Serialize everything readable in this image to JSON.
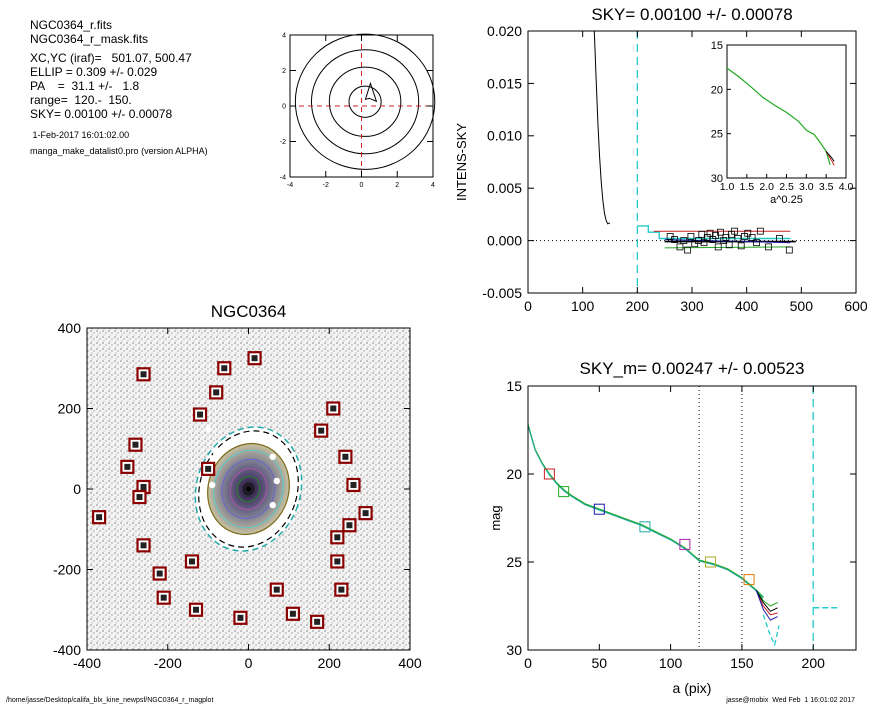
{
  "info": {
    "file1": "NGC0364_r.fits",
    "file2": "NGC0364_r_mask.fits",
    "xcyc": "XC,YC (iraf)=   501.07, 500.47",
    "ellip": "ELLIP = 0.309 +/- 0.029",
    "pa": "PA    =  31.1 +/-   1.8",
    "range": "range=  120.-  150.",
    "sky": "SKY= 0.00100 +/- 0.00078",
    "date": " 1-Feb-2017 16:01:02.00",
    "program": "manga_make_datalist0.pro (version ALPHA)"
  },
  "footer": {
    "path": "/home/jasse/Desktop/califa_blx_kine_newpsf/NGC0364_r_magplot",
    "user": "jasse@mobix  Wed Feb  1 16:01:02 2017"
  },
  "chart_data": [
    {
      "id": "contour-plot",
      "type": "contour",
      "title": "",
      "xlim": [
        -4,
        4
      ],
      "ylim": [
        -4,
        4
      ],
      "xticks": [
        "-4",
        "-2",
        "0",
        "2",
        "4"
      ],
      "yticks": [
        "-4",
        "-2",
        "0",
        "2",
        "4"
      ],
      "contour_radii": [
        0.9,
        2.0,
        3.0,
        3.9
      ],
      "center": [
        0.5,
        0.6
      ],
      "colors": {
        "crosshair": "#cc2222",
        "contour": "#000000"
      }
    },
    {
      "id": "sky-plot",
      "type": "line",
      "title": "SKY= 0.00100 +/- 0.00078",
      "xlabel": "",
      "ylabel": "INTENS-SKY",
      "xlim": [
        0,
        600
      ],
      "ylim": [
        -0.005,
        0.02
      ],
      "xticks": [
        "0",
        "100",
        "200",
        "300",
        "400",
        "500",
        "600"
      ],
      "yticks": [
        "-0.005",
        "0.000",
        "0.005",
        "0.010",
        "0.015",
        "0.020"
      ],
      "vline_x": 200,
      "profile": {
        "x": [
          120,
          122,
          125,
          128,
          131,
          134,
          137,
          140,
          143,
          146,
          150
        ],
        "y": [
          0.0215,
          0.019,
          0.015,
          0.011,
          0.008,
          0.0055,
          0.0038,
          0.0026,
          0.0019,
          0.0016,
          0.0017
        ]
      },
      "cyan_step": {
        "x": [
          200,
          220,
          220,
          240,
          240,
          480
        ],
        "y": [
          0.0014,
          0.0014,
          0.0008,
          0.0008,
          0.0002,
          0.0002
        ]
      },
      "lines": [
        {
          "color": "#cc2222",
          "x": [
            230,
            480
          ],
          "y": [
            0.0009,
            0.0009
          ]
        },
        {
          "color": "#000000",
          "x": [
            250,
            490
          ],
          "y": [
            -0.0001,
            -0.0001
          ]
        },
        {
          "color": "#1a1aaa",
          "x": [
            250,
            480
          ],
          "y": [
            0.0001,
            -0.0002
          ]
        },
        {
          "color": "#22aa22",
          "x": [
            250,
            480
          ],
          "y": [
            -0.0007,
            -0.0006
          ]
        }
      ],
      "squares": {
        "x": [
          260,
          268,
          278,
          285,
          292,
          298,
          305,
          312,
          318,
          322,
          328,
          333,
          338,
          343,
          348,
          352,
          358,
          362,
          368,
          372,
          378,
          384,
          390,
          396,
          402,
          410,
          418,
          425,
          440,
          460,
          478
        ],
        "y": [
          0.0004,
          0.0001,
          -0.0006,
          0.0,
          -0.0009,
          0.0004,
          -0.0003,
          0.0,
          0.0006,
          -0.0002,
          0.0003,
          0.0007,
          0.0001,
          0.0005,
          -0.0006,
          0.0008,
          0.0,
          0.0003,
          -0.0004,
          0.0006,
          0.0009,
          0.0002,
          -0.0005,
          0.0004,
          0.0007,
          0.0003,
          -0.0002,
          0.0009,
          -0.0006,
          0.0002,
          -0.0009
        ]
      },
      "inset": {
        "xlabel": "a^0.25",
        "xlim": [
          1.0,
          4.0
        ],
        "ylim": [
          15,
          30
        ],
        "xticks": [
          "1.0",
          "1.5",
          "2.0",
          "2.5",
          "3.0",
          "3.5",
          "4.0"
        ],
        "yticks": [
          "15",
          "20",
          "25",
          "30"
        ],
        "x": [
          1.0,
          1.3,
          1.6,
          1.9,
          2.2,
          2.5,
          2.8,
          3.0,
          3.2,
          3.35,
          3.5,
          3.6
        ],
        "y": [
          17.6,
          18.6,
          19.7,
          20.9,
          21.8,
          22.6,
          23.6,
          24.6,
          25.1,
          26.0,
          27.0,
          28.5
        ]
      }
    },
    {
      "id": "image-panel",
      "type": "scatter",
      "title": "NGC0364",
      "xlim": [
        -400,
        400
      ],
      "ylim": [
        -400,
        400
      ],
      "xticks": [
        "-400",
        "-200",
        "0",
        "200",
        "400"
      ],
      "yticks": [
        "-400",
        "-200",
        "0",
        "200",
        "400"
      ],
      "ellipse": {
        "a": 120,
        "b": 83,
        "pa_deg": 31.1
      },
      "sky_boxes": {
        "x": [
          -60,
          15,
          -80,
          -260,
          -120,
          -280,
          -260,
          -100,
          -300,
          -270,
          -370,
          -260,
          -220,
          -140,
          -210,
          -130,
          -20,
          70,
          110,
          170,
          230,
          220,
          180,
          210,
          240,
          290,
          250,
          220,
          260
        ],
        "y": [
          300,
          325,
          240,
          285,
          185,
          110,
          5,
          50,
          55,
          -20,
          -70,
          -140,
          -210,
          -180,
          -270,
          -300,
          -320,
          -250,
          -310,
          -330,
          -250,
          -180,
          145,
          200,
          80,
          -60,
          -90,
          -120,
          10
        ],
        "color": "#8b0000"
      },
      "knots": {
        "x": [
          -100,
          -80,
          -90,
          60,
          70,
          60
        ],
        "y": [
          150,
          90,
          10,
          80,
          20,
          -40
        ]
      }
    },
    {
      "id": "mag-plot",
      "type": "line",
      "title": "SKY_m=  0.00247 +/- 0.00523",
      "xlabel": "a (pix)",
      "ylabel": "mag",
      "xlim": [
        0,
        230
      ],
      "ylim": [
        15,
        30
      ],
      "xticks": [
        "0",
        "50",
        "100",
        "150",
        "200"
      ],
      "yticks": [
        "15",
        "20",
        "25",
        "30"
      ],
      "vlines_dotted": [
        120,
        150
      ],
      "vline_dashed": 200,
      "main": {
        "x": [
          0,
          5,
          10,
          15,
          20,
          25,
          30,
          40,
          50,
          60,
          70,
          80,
          90,
          100,
          110,
          120,
          130,
          140,
          150,
          160,
          165
        ],
        "y": [
          17.2,
          18.6,
          19.4,
          20.0,
          20.5,
          20.9,
          21.2,
          21.7,
          22.0,
          22.3,
          22.6,
          22.9,
          23.3,
          23.7,
          24.2,
          24.9,
          25.1,
          25.4,
          25.9,
          26.6,
          27.0
        ]
      },
      "tails": [
        {
          "color": "#22aa22",
          "x": [
            160,
            165,
            170,
            175
          ],
          "y": [
            26.6,
            27.2,
            27.5,
            27.3
          ]
        },
        {
          "color": "#cc2222",
          "x": [
            160,
            165,
            170,
            175
          ],
          "y": [
            26.6,
            27.5,
            28.0,
            27.9
          ]
        },
        {
          "color": "#000000",
          "x": [
            160,
            165,
            170,
            175
          ],
          "y": [
            26.6,
            27.3,
            27.8,
            27.6
          ]
        },
        {
          "color": "#1a1aaa",
          "x": [
            160,
            165,
            170,
            175
          ],
          "y": [
            26.6,
            27.7,
            28.3,
            28.1
          ]
        }
      ],
      "cyan_tail": {
        "x": [
          165,
          170,
          173,
          176
        ],
        "y": [
          28.0,
          29.2,
          29.7,
          28.6
        ]
      },
      "cyan_flat": {
        "x": [
          200,
          218
        ],
        "y": [
          27.6,
          27.6
        ]
      },
      "markers": [
        {
          "x": 15,
          "y": 20.0,
          "color": "#cc2222"
        },
        {
          "x": 25,
          "y": 21.0,
          "color": "#22aa22"
        },
        {
          "x": 50,
          "y": 22.0,
          "color": "#1a1aaa"
        },
        {
          "x": 82,
          "y": 23.0,
          "color": "#22aaaa"
        },
        {
          "x": 110,
          "y": 24.0,
          "color": "#aa22aa"
        },
        {
          "x": 128,
          "y": 25.0,
          "color": "#aaaa22"
        },
        {
          "x": 155,
          "y": 26.0,
          "color": "#dd7700"
        }
      ]
    }
  ]
}
